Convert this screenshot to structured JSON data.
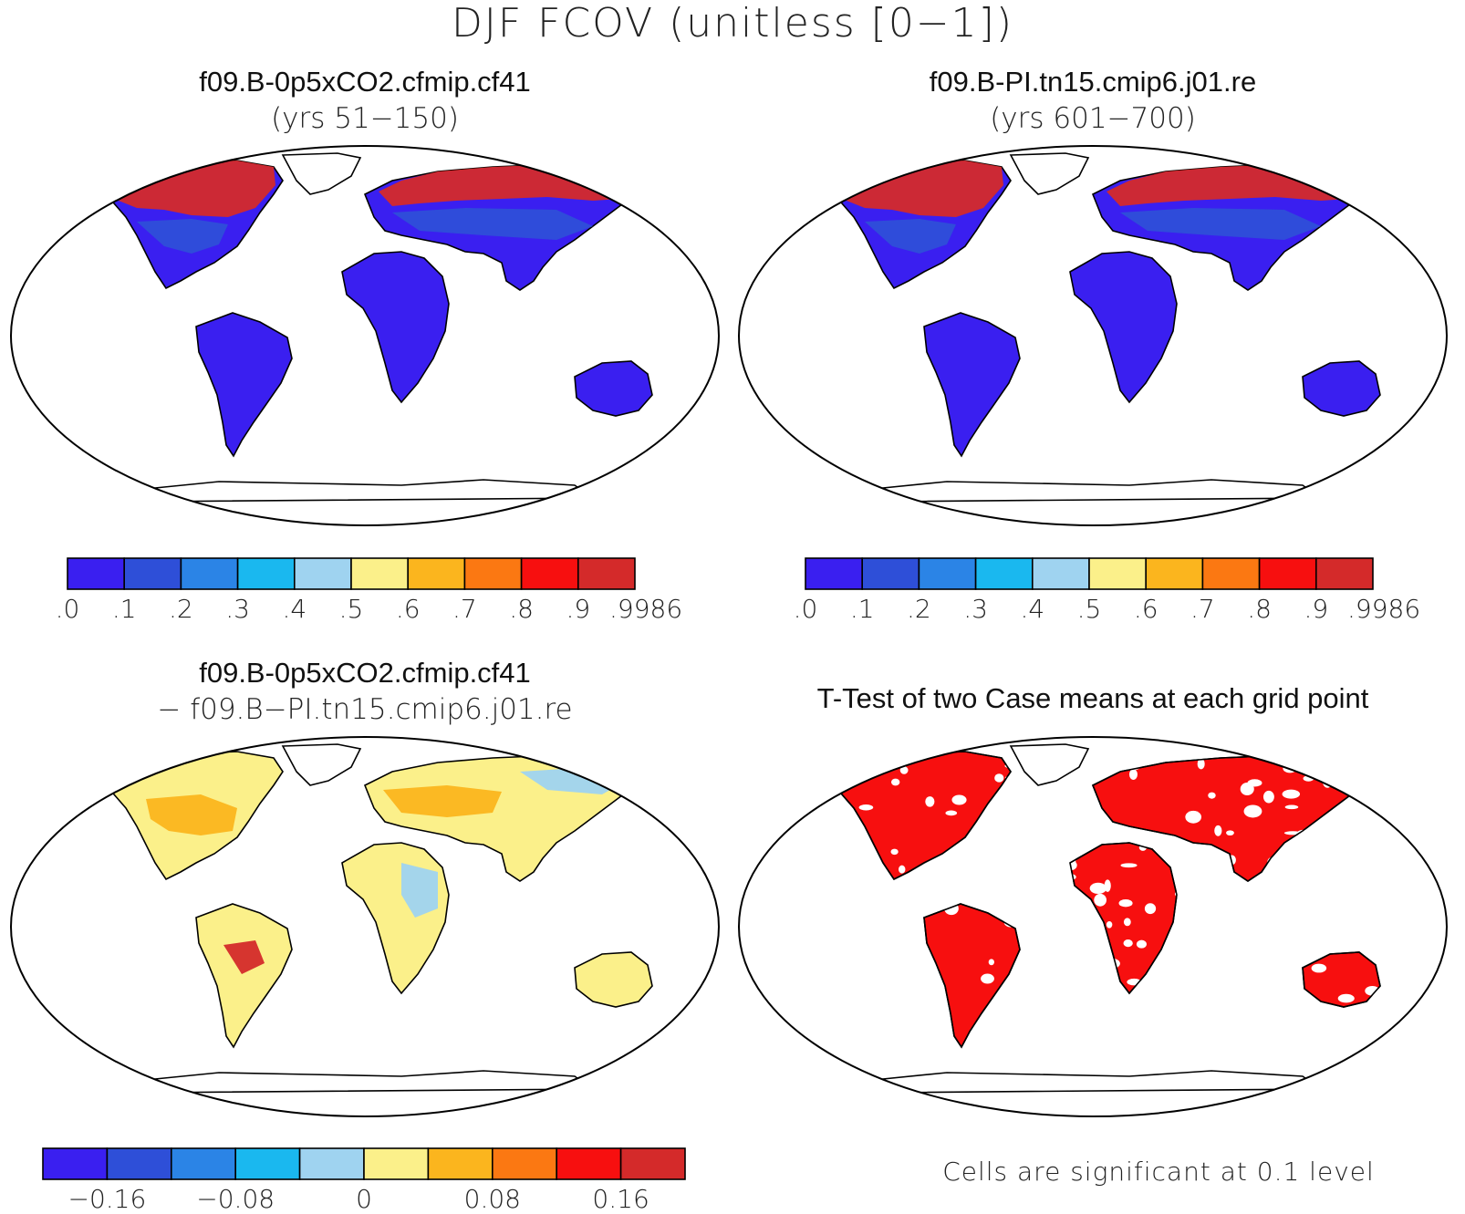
{
  "title": "DJF FCOV (unitless [0−1])",
  "panels": [
    {
      "title": "f09.B-0p5xCO2.cfmip.cf41",
      "subtitle": "(yrs 51−150)"
    },
    {
      "title": "f09.B-PI.tn15.cmip6.j01.re",
      "subtitle": "(yrs 601−700)"
    },
    {
      "title": "f09.B-0p5xCO2.cfmip.cf41",
      "subtitle": "− f09.B−PI.tn15.cmip6.j01.re"
    },
    {
      "title": "T-Test of two Case means at each grid point",
      "subtitle": ""
    }
  ],
  "colorbar_main": {
    "colors": [
      "#3a1ff0",
      "#2e4fd8",
      "#2b84e6",
      "#1ab8ef",
      "#9fd3f0",
      "#fbf08a",
      "#fbb51e",
      "#fb7812",
      "#f70f0f",
      "#d42a2a"
    ],
    "labels": [
      ".0",
      ".1",
      ".2",
      ".3",
      ".4",
      ".5",
      ".6",
      ".7",
      ".8",
      ".9",
      ".9986"
    ]
  },
  "colorbar_diff": {
    "colors": [
      "#3a1ff0",
      "#2e4fd8",
      "#2b84e6",
      "#1ab8ef",
      "#9fd3f0",
      "#fbf08a",
      "#fbb51e",
      "#fb7812",
      "#f70f0f",
      "#d42a2a"
    ],
    "labels": [
      "−0.16",
      "−0.08",
      "0",
      "0.08",
      "0.16"
    ]
  },
  "significance_note": "Cells are significant at 0.1 level",
  "map_colors": {
    "low": "#3a1ff0",
    "mid": "#2e4fd8",
    "high": "#d42a2a",
    "diff_base": "#fbf08a",
    "diff_neg": "#9fd3f0",
    "diff_pos": "#fbb51e",
    "sig": "#f70f0f"
  }
}
